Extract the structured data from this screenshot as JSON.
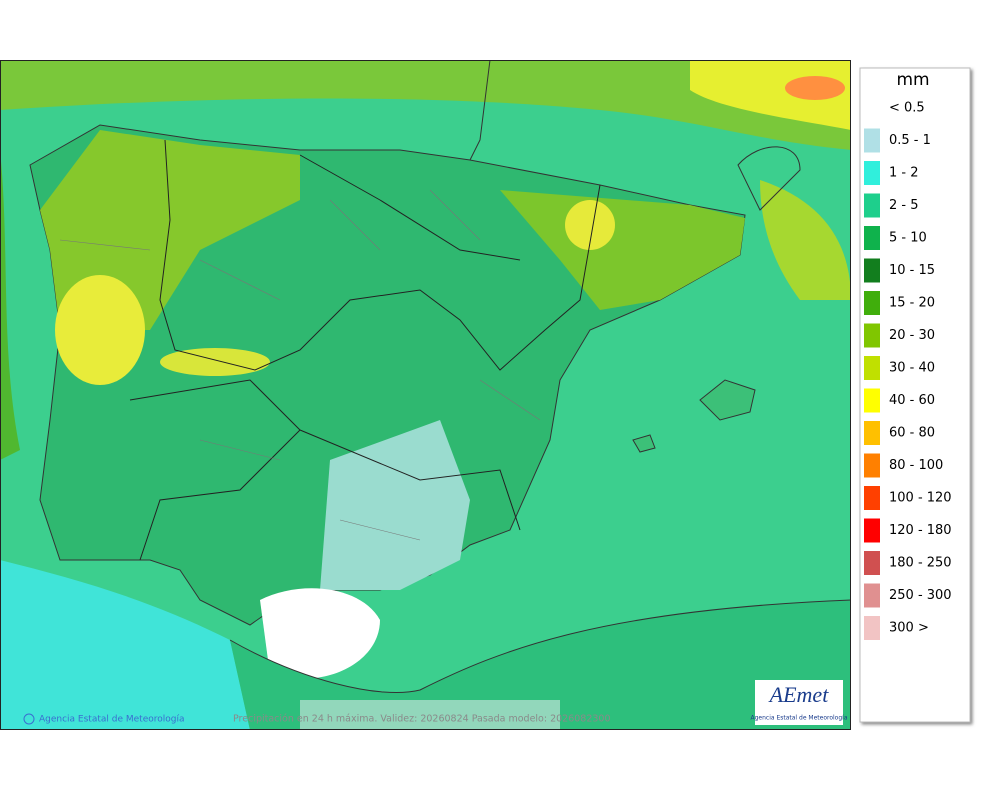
{
  "map": {
    "footer_credit": "Agencia Estatal de Meteorología",
    "footer_caption": "Precipitación en 24 h máxima. Validez: 20260824 Pasada modelo: 2026082300",
    "logo": {
      "name": "AEmet",
      "subtitle": "Agencia Estatal de Meteorología"
    }
  },
  "legend": {
    "title": "mm",
    "entries": [
      {
        "label": "< 0.5"
      },
      {
        "label": "0.5 - 1",
        "color": "#b0e0e6"
      },
      {
        "label": "1 - 2",
        "color": "#30efdc"
      },
      {
        "label": "2 - 5",
        "color": "#1ecf8c"
      },
      {
        "label": "5 - 10",
        "color": "#0fb24c"
      },
      {
        "label": "10 - 15",
        "color": "#127e1e"
      },
      {
        "label": "15 - 20",
        "color": "#40ae0c"
      },
      {
        "label": "20 - 30",
        "color": "#80c600"
      },
      {
        "label": "30 - 40",
        "color": "#c0e000"
      },
      {
        "label": "40 - 60",
        "color": "#ffff00"
      },
      {
        "label": "60 - 80",
        "color": "#ffc000"
      },
      {
        "label": "80 - 100",
        "color": "#ff8000"
      },
      {
        "label": "100 - 120",
        "color": "#ff4000"
      },
      {
        "label": "120 - 180",
        "color": "#ff0000"
      },
      {
        "label": "180 - 250",
        "color": "#d05050"
      },
      {
        "label": "250 - 300",
        "color": "#e09090"
      },
      {
        "label": "300 >",
        "color": "#f2c4c4"
      }
    ]
  }
}
